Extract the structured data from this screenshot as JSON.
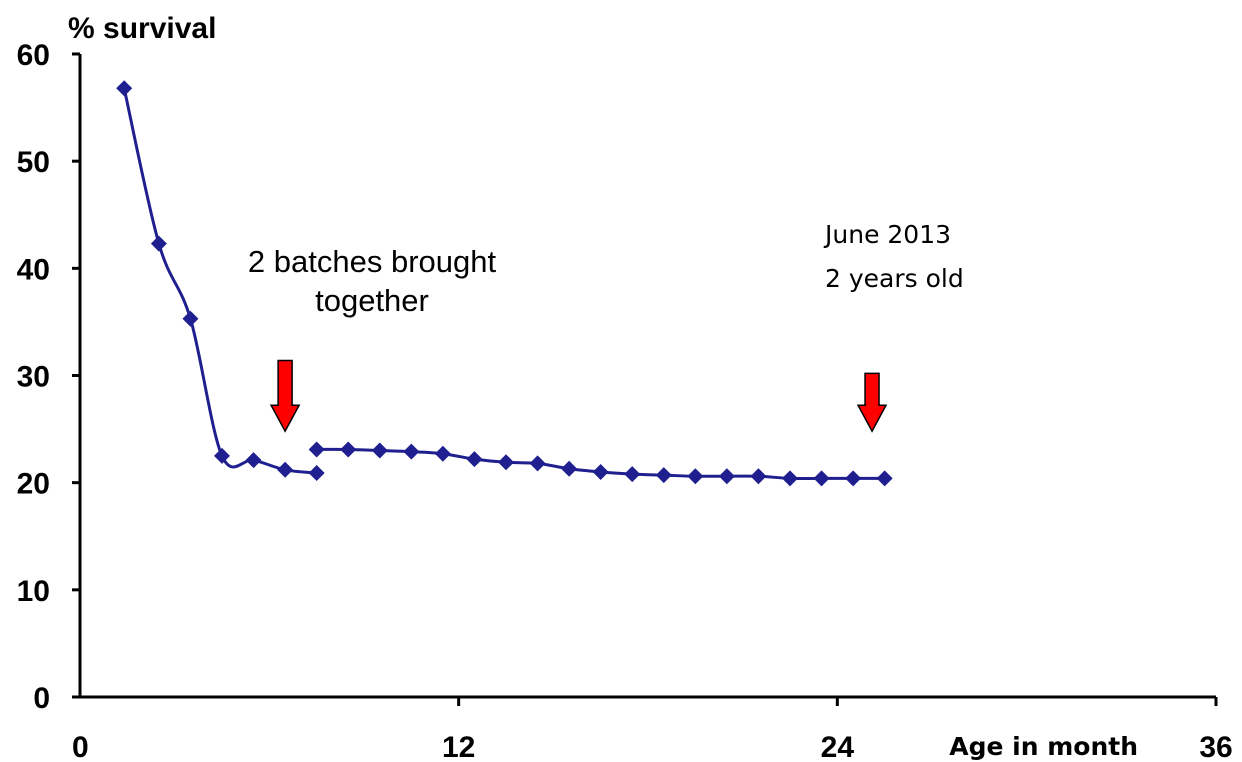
{
  "chart_data": {
    "type": "line",
    "ylabel": "% survival",
    "xlabel": "Age in month",
    "xlim": [
      0,
      36
    ],
    "ylim": [
      0,
      60
    ],
    "xticks": [
      0,
      12,
      24,
      36
    ],
    "yticks": [
      0,
      10,
      20,
      30,
      40,
      50,
      60
    ],
    "grid": false,
    "series_color": "#1f1f8f",
    "arrow_color": "#ff0000",
    "series": [
      {
        "segments": [
          {
            "x": [
              1.4,
              2.5,
              3.5,
              4.5,
              5.5,
              6.5,
              7.5
            ],
            "y": [
              56.8,
              42.3,
              35.3,
              22.5,
              22.1,
              21.2,
              20.9
            ]
          },
          {
            "x": [
              7.5,
              8.5,
              9.5,
              10.5,
              11.5,
              12.5,
              13.5,
              14.5,
              15.5,
              16.5,
              17.5,
              18.5,
              19.5,
              20.5,
              21.5,
              22.5,
              23.5,
              24.5,
              25.5
            ],
            "y": [
              23.1,
              23.1,
              23.0,
              22.9,
              22.7,
              22.2,
              21.9,
              21.8,
              21.3,
              21.0,
              20.8,
              20.7,
              20.6,
              20.6,
              20.6,
              20.4,
              20.4,
              20.4,
              20.4
            ]
          }
        ]
      }
    ],
    "annotations": [
      {
        "lines": [
          "2 batches brought",
          "together"
        ],
        "arrow_x": 6.5,
        "arrow_top_y": 31.4,
        "arrow_tip_y": 24.8
      },
      {
        "lines": [
          "June 2013",
          "2 years old"
        ],
        "arrow_x": 25.1,
        "arrow_top_y": 30.2,
        "arrow_tip_y": 24.8
      }
    ]
  }
}
